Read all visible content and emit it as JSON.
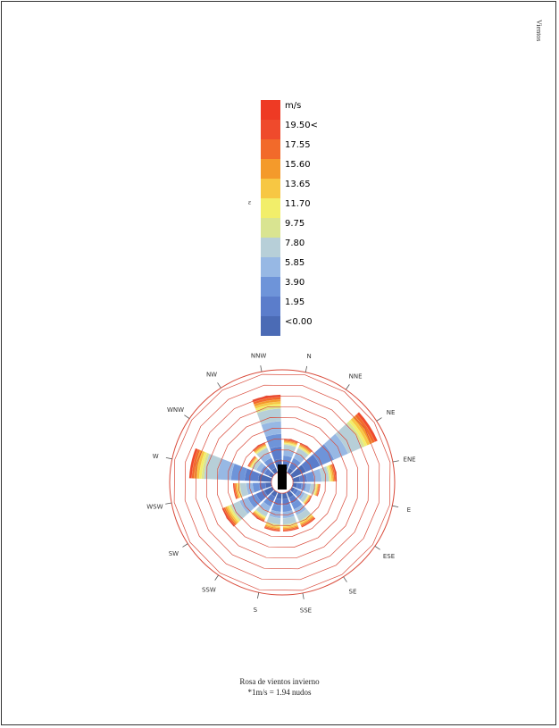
{
  "side_label": "Vientos",
  "small_mark": "ε",
  "legend": {
    "unit": "m/s",
    "items": [
      {
        "label": "19.50<",
        "color": "#ef4a2c"
      },
      {
        "label": "17.55",
        "color": "#f26a2a"
      },
      {
        "label": "15.60",
        "color": "#f49a2b"
      },
      {
        "label": "13.65",
        "color": "#f7c743"
      },
      {
        "label": "11.70",
        "color": "#f2ee6a"
      },
      {
        "label": "9.75",
        "color": "#d9e491"
      },
      {
        "label": "7.80",
        "color": "#b7cfd8"
      },
      {
        "label": "5.85",
        "color": "#97b8e4"
      },
      {
        "label": "3.90",
        "color": "#6e94d9"
      },
      {
        "label": "1.95",
        "color": "#5b7dcb"
      },
      {
        "label": "<0.00",
        "color": "#4b6bb5"
      }
    ],
    "top_color": "#ee3a24"
  },
  "caption": {
    "line1": "Rosa de vientos invierno",
    "line2": "*1m/s = 1.94 nudos"
  },
  "chart_data": {
    "type": "windrose",
    "directions": [
      "N",
      "NNE",
      "NE",
      "ENE",
      "E",
      "ESE",
      "SE",
      "SSE",
      "S",
      "SSW",
      "SW",
      "WSW",
      "W",
      "WNW",
      "NW",
      "NNW"
    ],
    "relative_length": [
      0.3,
      0.3,
      0.85,
      0.4,
      0.25,
      0.2,
      0.35,
      0.35,
      0.35,
      0.3,
      0.5,
      0.35,
      0.75,
      0.25,
      0.3,
      0.7
    ],
    "ring_count": 10,
    "ring_color": "#d94a3a",
    "category_colors": [
      "#4b6bb5",
      "#5b7dcb",
      "#6e94d9",
      "#97b8e4",
      "#b7cfd8",
      "#d9e491",
      "#f2ee6a",
      "#f7c743",
      "#f49a2b",
      "#f26a2a",
      "#ef4a2c"
    ]
  }
}
